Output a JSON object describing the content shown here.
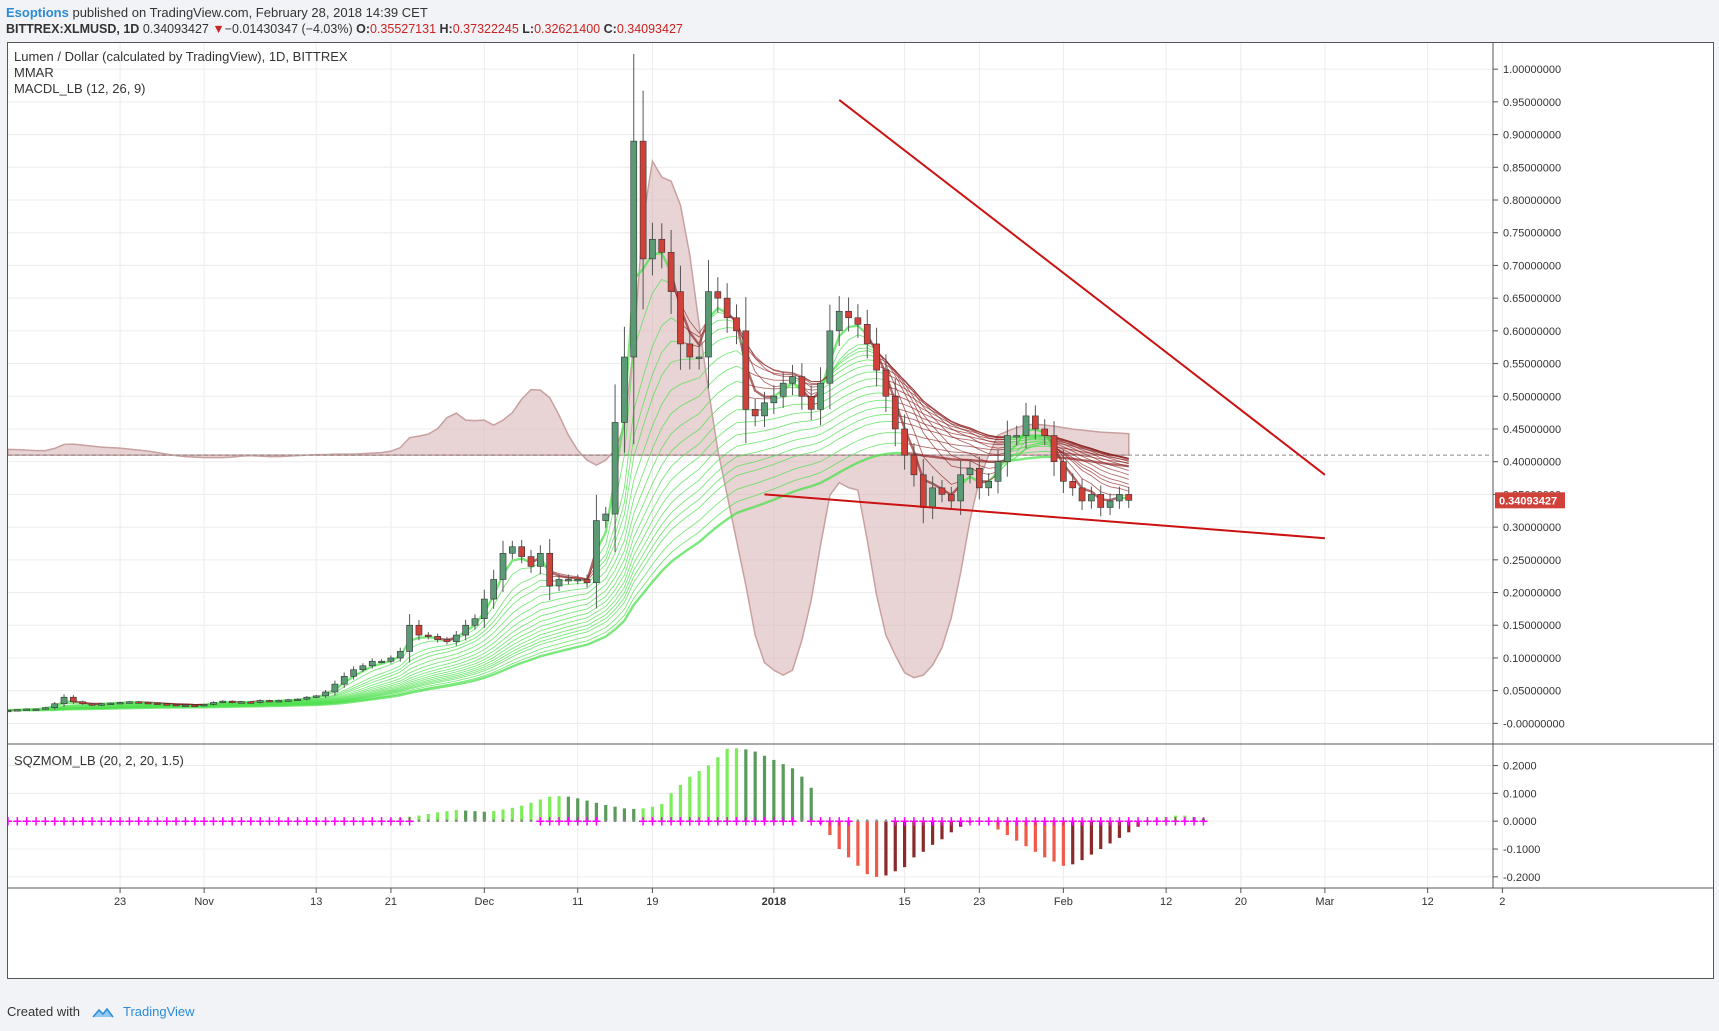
{
  "header": {
    "author": "Esoptions",
    "published": "published on TradingView.com, February 28, 2018 14:39 CET",
    "symbol": "BITTREX:XLMUSD, 1D",
    "last": "0.34093427",
    "change": "−0.01430347 (−4.03%)",
    "o_label": "O:",
    "o_value": "0.35527131",
    "h_label": "H:",
    "h_value": "0.37322245",
    "l_label": "L:",
    "l_value": "0.32621400",
    "c_label": "C:",
    "c_value": "0.34093427"
  },
  "legend": {
    "title": "Lumen / Dollar (calculated by TradingView), 1D, BITTREX",
    "mmar": "MMAR",
    "macd": "MACDL_LB (12, 26, 9)",
    "sqz": "SQZMOM_LB (20, 2, 20, 1.5)"
  },
  "last_price_label": "0.34093427",
  "footer": {
    "created": "Created with",
    "brand": "TradingView"
  },
  "colors": {
    "up": "#5a9a74",
    "down": "#d0413a",
    "ma_green": "#4fe04f",
    "ma_red": "#8b1a1a",
    "macd_fill": "#d8b8b8",
    "trendline": "#cc1111",
    "sqz_cross": "#ff00ff",
    "sqz_pos_bright": "#7dee5a",
    "sqz_pos_dark": "#5a9a5a",
    "sqz_neg_bright": "#f05a4a",
    "sqz_neg_dark": "#8b2a2a"
  },
  "chart_data": [
    {
      "type": "candlestick",
      "title": "Lumen / Dollar (calculated by TradingView), 1D, BITTREX",
      "y_ticks": [
        "1.00000000",
        "0.95000000",
        "0.90000000",
        "0.85000000",
        "0.80000000",
        "0.75000000",
        "0.70000000",
        "0.65000000",
        "0.60000000",
        "0.55000000",
        "0.50000000",
        "0.45000000",
        "0.40000000",
        "0.35000000",
        "0.30000000",
        "0.25000000",
        "0.20000000",
        "0.15000000",
        "0.10000000",
        "0.05000000",
        "-0.00000000"
      ],
      "y_range": [
        -0.03,
        1.04
      ],
      "x_ticks": [
        {
          "label": "23",
          "date": "2017-10-23"
        },
        {
          "label": "Nov",
          "date": "2017-11-01"
        },
        {
          "label": "13",
          "date": "2017-11-13"
        },
        {
          "label": "21",
          "date": "2017-11-21"
        },
        {
          "label": "Dec",
          "date": "2017-12-01"
        },
        {
          "label": "11",
          "date": "2017-12-11"
        },
        {
          "label": "19",
          "date": "2017-12-19"
        },
        {
          "label": "2018",
          "date": "2018-01-01"
        },
        {
          "label": "15",
          "date": "2018-01-15"
        },
        {
          "label": "23",
          "date": "2018-01-23"
        },
        {
          "label": "Feb",
          "date": "2018-02-01"
        },
        {
          "label": "12",
          "date": "2018-02-12"
        },
        {
          "label": "20",
          "date": "2018-02-20"
        },
        {
          "label": "Mar",
          "date": "2018-03-01"
        },
        {
          "label": "12",
          "date": "2018-03-12"
        },
        {
          "label": "2",
          "date": "2018-03-20"
        }
      ],
      "x_range": [
        "2017-10-11",
        "2018-03-19"
      ],
      "close": [
        0.02,
        0.021,
        0.022,
        0.022,
        0.024,
        0.03,
        0.04,
        0.033,
        0.03,
        0.028,
        0.03,
        0.031,
        0.032,
        0.033,
        0.032,
        0.031,
        0.03,
        0.029,
        0.028,
        0.028,
        0.027,
        0.029,
        0.032,
        0.034,
        0.032,
        0.033,
        0.032,
        0.035,
        0.034,
        0.035,
        0.036,
        0.037,
        0.04,
        0.042,
        0.048,
        0.06,
        0.072,
        0.082,
        0.088,
        0.095,
        0.095,
        0.1,
        0.11,
        0.15,
        0.135,
        0.133,
        0.128,
        0.125,
        0.135,
        0.15,
        0.16,
        0.19,
        0.22,
        0.26,
        0.27,
        0.255,
        0.24,
        0.26,
        0.21,
        0.22,
        0.22,
        0.22,
        0.215,
        0.31,
        0.32,
        0.46,
        0.56,
        0.89,
        0.71,
        0.74,
        0.72,
        0.66,
        0.58,
        0.56,
        0.56,
        0.66,
        0.65,
        0.62,
        0.6,
        0.48,
        0.47,
        0.49,
        0.5,
        0.52,
        0.53,
        0.5,
        0.48,
        0.52,
        0.6,
        0.63,
        0.62,
        0.61,
        0.58,
        0.54,
        0.5,
        0.45,
        0.41,
        0.38,
        0.33,
        0.36,
        0.35,
        0.34,
        0.38,
        0.39,
        0.36,
        0.37,
        0.4,
        0.44,
        0.44,
        0.47,
        0.45,
        0.44,
        0.4,
        0.37,
        0.36,
        0.34,
        0.35,
        0.33,
        0.34,
        0.35,
        0.34093427
      ],
      "macd": [
        0.0115,
        0.011,
        0.01,
        0.009,
        0.009,
        0.0135,
        0.0215,
        0.022,
        0.02,
        0.018,
        0.016,
        0.015,
        0.014,
        0.012,
        0.01,
        0.008,
        0.005,
        0.002,
        -0.001,
        -0.003,
        -0.004,
        -0.005,
        -0.005,
        -0.005,
        -0.004,
        -0.002,
        -0.001,
        -0.002,
        -0.003,
        -0.003,
        -0.002,
        -0.001,
        0.0,
        0.001,
        0.001,
        0.002,
        0.002,
        0.002,
        0.003,
        0.004,
        0.005,
        0.008,
        0.015,
        0.035,
        0.038,
        0.042,
        0.053,
        0.075,
        0.084,
        0.07,
        0.069,
        0.07,
        0.06,
        0.07,
        0.085,
        0.112,
        0.131,
        0.13,
        0.115,
        0.08,
        0.04,
        0.01,
        -0.01,
        -0.02,
        -0.01,
        0.01,
        0.06,
        0.22,
        0.47,
        0.588,
        0.556,
        0.548,
        0.5,
        0.4,
        0.26,
        0.13,
        0.01,
        -0.08,
        -0.17,
        -0.26,
        -0.36,
        -0.415,
        -0.43,
        -0.44,
        -0.43,
        -0.37,
        -0.29,
        -0.18,
        -0.08,
        -0.055,
        -0.065,
        -0.07,
        -0.17,
        -0.28,
        -0.36,
        -0.4,
        -0.435,
        -0.445,
        -0.44,
        -0.42,
        -0.385,
        -0.325,
        -0.235,
        -0.13,
        -0.05,
        0.0,
        0.04,
        0.048,
        0.055,
        0.06,
        0.062,
        0.06,
        0.058,
        0.055,
        0.052,
        0.05,
        0.048,
        0.046,
        0.045,
        0.044,
        0.043
      ],
      "trendlines": [
        {
          "from": [
            "2018-01-08",
            0.953
          ],
          "to": [
            "2018-03-01",
            0.38
          ]
        },
        {
          "from": [
            "2017-12-31",
            0.35
          ],
          "to": [
            "2018-03-01",
            0.283
          ]
        }
      ],
      "reference_line": 0.41
    },
    {
      "type": "bar",
      "title": "SQZMOM_LB (20, 2, 20, 1.5)",
      "y_ticks": [
        "0.2000",
        "0.1000",
        "0.0000",
        "-0.1000",
        "-0.2000"
      ],
      "y_range": [
        -0.24,
        0.27
      ],
      "values": [
        0,
        0,
        0,
        0,
        0,
        0,
        0,
        0,
        0,
        0,
        0,
        0,
        0,
        0,
        0,
        0,
        0,
        0,
        0,
        0,
        0,
        0,
        0,
        0,
        0,
        0,
        0,
        0,
        0,
        0,
        0,
        0,
        0,
        0,
        0,
        0,
        0,
        0,
        0,
        0,
        0.004,
        0.008,
        0.012,
        0.016,
        0.02,
        0.026,
        0.032,
        0.036,
        0.04,
        0.038,
        0.036,
        0.034,
        0.036,
        0.042,
        0.048,
        0.056,
        0.066,
        0.078,
        0.088,
        0.09,
        0.088,
        0.082,
        0.074,
        0.066,
        0.058,
        0.052,
        0.046,
        0.044,
        0.046,
        0.052,
        0.062,
        0.1,
        0.13,
        0.16,
        0.18,
        0.2,
        0.23,
        0.26,
        0.262,
        0.258,
        0.25,
        0.235,
        0.22,
        0.205,
        0.19,
        0.16,
        0.12,
        -0.01,
        -0.05,
        -0.1,
        -0.13,
        -0.16,
        -0.19,
        -0.2,
        -0.195,
        -0.18,
        -0.165,
        -0.13,
        -0.11,
        -0.085,
        -0.065,
        -0.04,
        -0.02,
        -0.005,
        0,
        0,
        -0.03,
        -0.05,
        -0.07,
        -0.09,
        -0.11,
        -0.13,
        -0.145,
        -0.16,
        -0.155,
        -0.14,
        -0.12,
        -0.1,
        -0.08,
        -0.06,
        -0.04,
        -0.02,
        0.005,
        0.01,
        0.015,
        0.02,
        0.02,
        0.015,
        0.01
      ]
    }
  ]
}
